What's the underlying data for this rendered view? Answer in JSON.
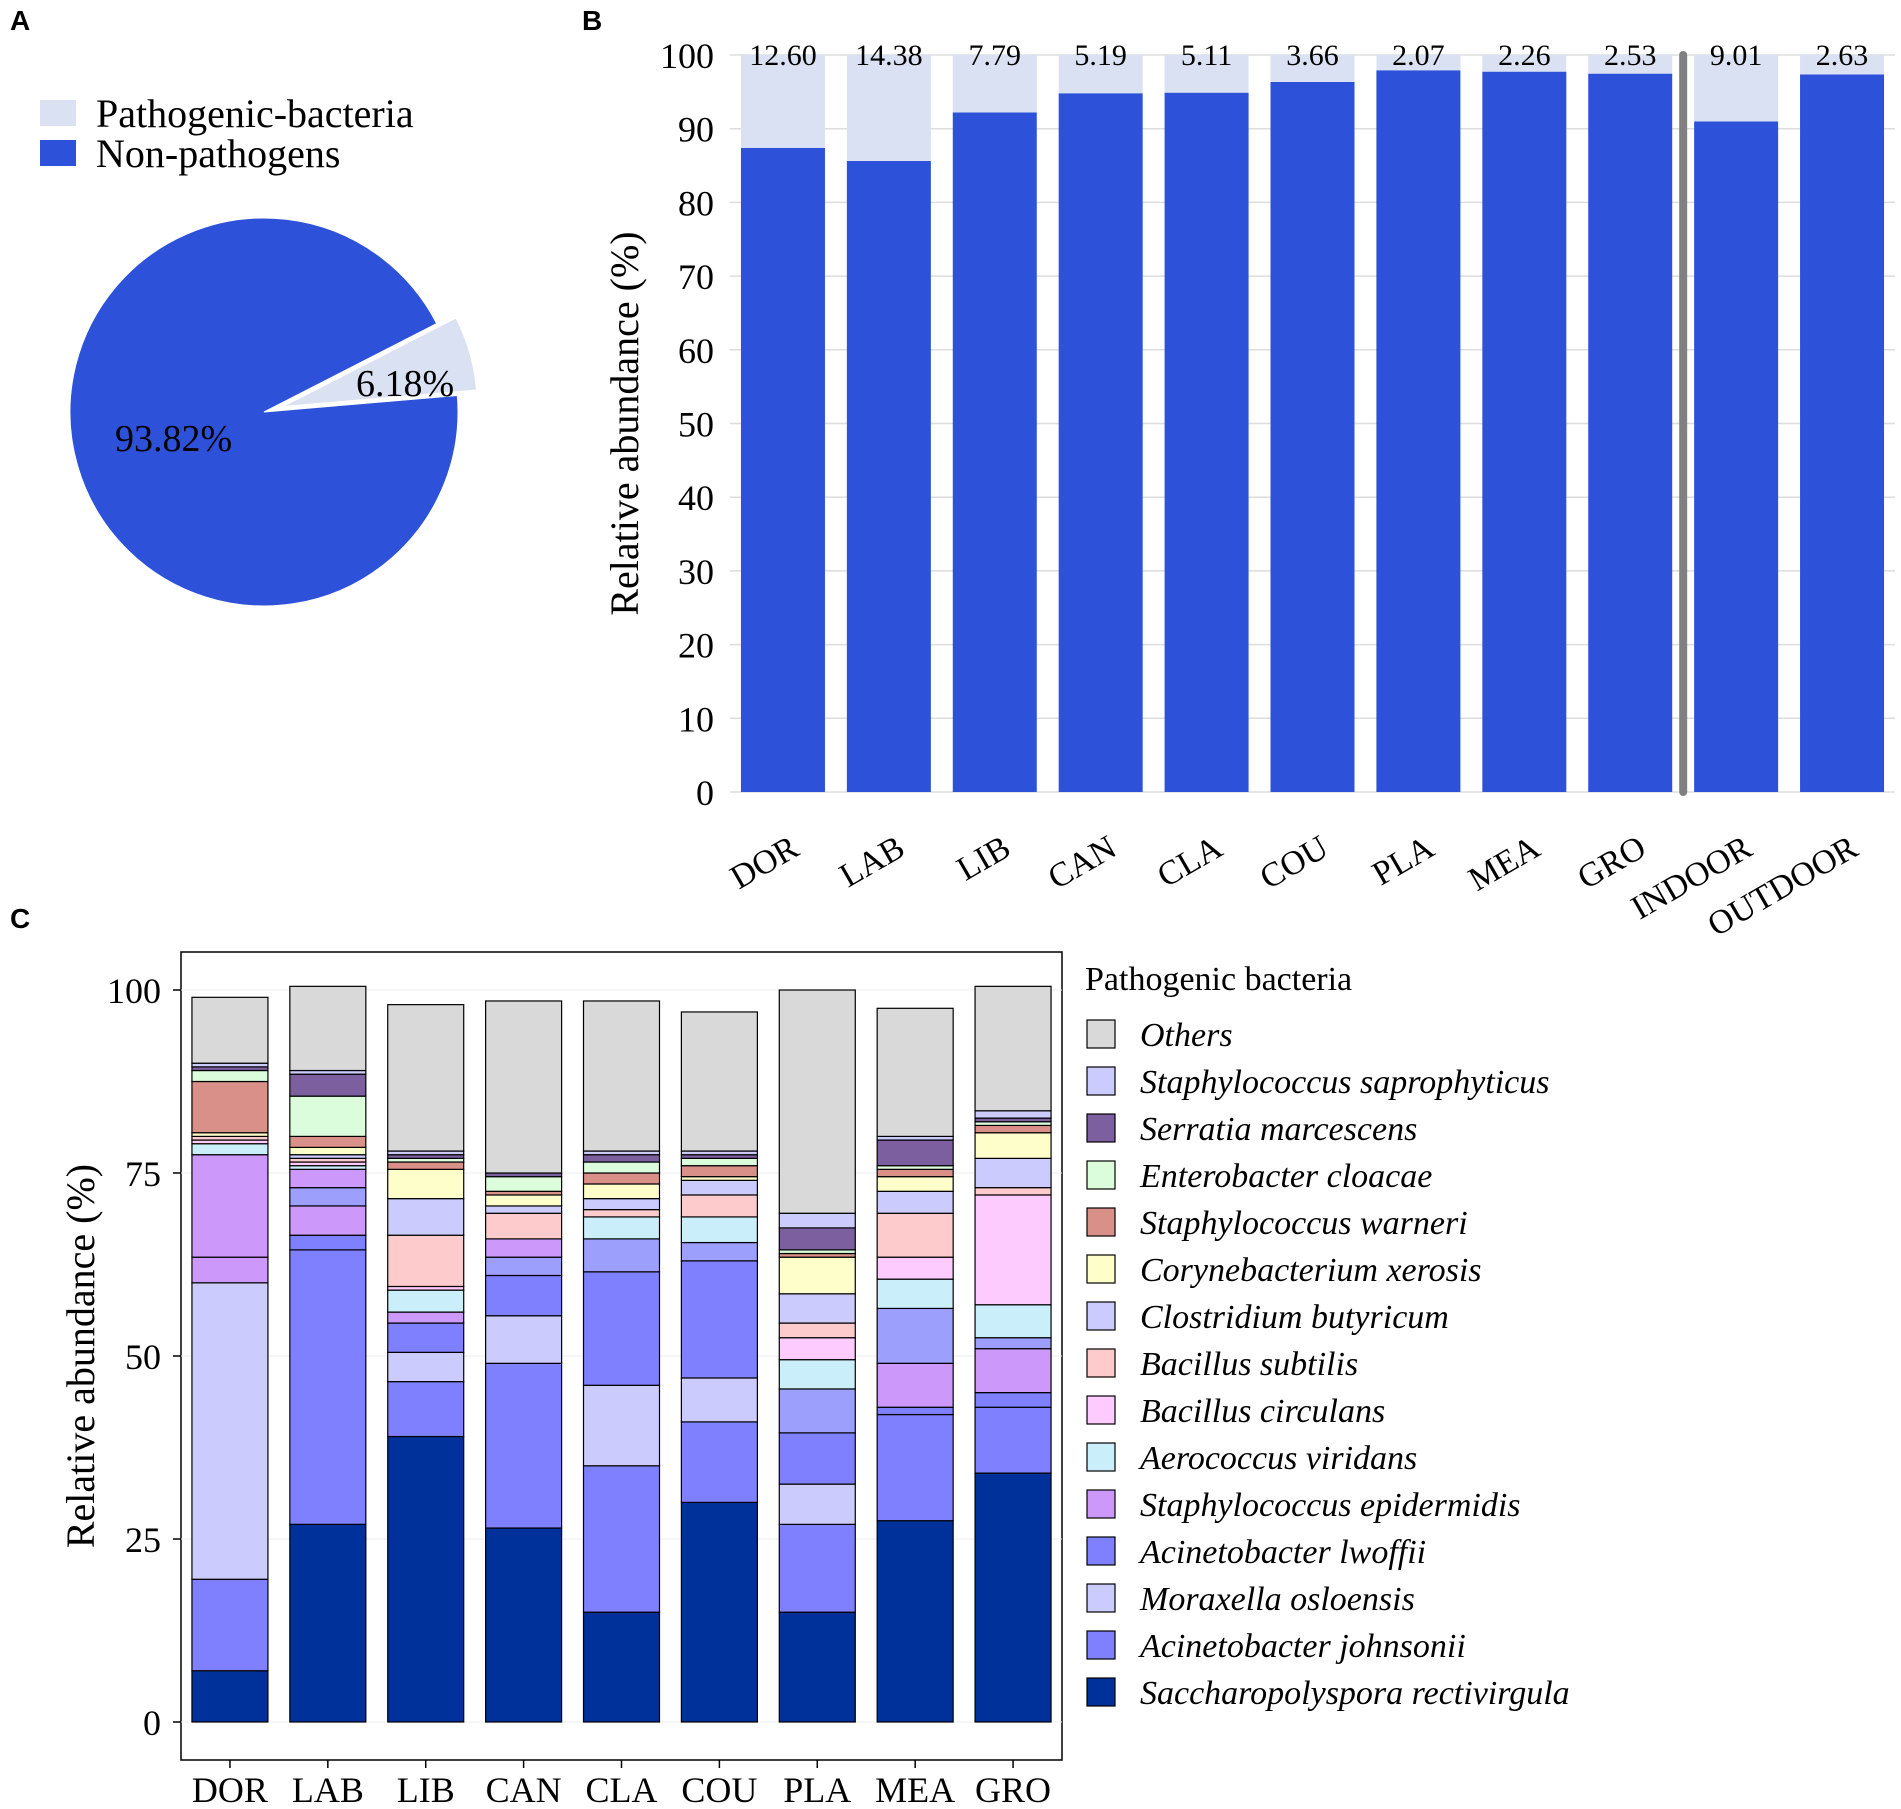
{
  "panels": {
    "a": "A",
    "b": "B",
    "c": "C"
  },
  "colors": {
    "pathogenic": "#dae1f3",
    "nonpathogen": "#2d52d9",
    "divider": "#808080",
    "gridline": "#dddddd"
  },
  "chart_data": [
    {
      "id": "A",
      "type": "pie",
      "legend": [
        {
          "label": "Pathogenic-bacteria",
          "color": "#dae1f3"
        },
        {
          "label": "Non-pathogens",
          "color": "#2d52d9"
        }
      ],
      "slices": [
        {
          "name": "Pathogenic-bacteria",
          "value": 6.18,
          "label": "6.18%",
          "color": "#dae1f3",
          "exploded": true
        },
        {
          "name": "Non-pathogens",
          "value": 93.82,
          "label": "93.82%",
          "color": "#2d52d9",
          "exploded": false
        }
      ]
    },
    {
      "id": "B",
      "type": "bar",
      "stacked": true,
      "ylabel": "Relative abundance (%)",
      "ylim": [
        0,
        100
      ],
      "yticks": [
        "0",
        "10",
        "20",
        "30",
        "40",
        "50",
        "60",
        "70",
        "80",
        "90",
        "100"
      ],
      "categories": [
        "DOR",
        "LAB",
        "LIB",
        "CAN",
        "CLA",
        "COU",
        "PLA",
        "MEA",
        "GRO",
        "INDOOR",
        "OUTDOOR"
      ],
      "series": [
        {
          "name": "Non-pathogens",
          "color": "#2d52d9",
          "values": [
            87.4,
            85.62,
            92.21,
            94.81,
            94.89,
            96.34,
            97.93,
            97.74,
            97.47,
            90.99,
            97.37
          ]
        },
        {
          "name": "Pathogenic-bacteria",
          "color": "#dae1f3",
          "values": [
            12.6,
            14.38,
            7.79,
            5.19,
            5.11,
            3.66,
            2.07,
            2.26,
            2.53,
            9.01,
            2.63
          ]
        }
      ],
      "data_labels": [
        "12.60",
        "14.38",
        "7.79",
        "5.19",
        "5.11",
        "3.66",
        "2.07",
        "2.26",
        "2.53",
        "9.01",
        "2.63"
      ],
      "divider_after": "GRO"
    },
    {
      "id": "C",
      "type": "bar",
      "stacked": true,
      "ylabel": "Relative abundance (%)",
      "ylim": [
        0,
        100
      ],
      "yticks": [
        "0",
        "25",
        "50",
        "75",
        "100"
      ],
      "legend_title": "Pathogenic bacteria",
      "categories": [
        "DOR",
        "LAB",
        "LIB",
        "CAN",
        "CLA",
        "COU",
        "PLA",
        "MEA",
        "GRO"
      ],
      "series": [
        {
          "name": "Saccharopolyspora rectivirgula",
          "color": "#00309a",
          "values": [
            7,
            27,
            39,
            26.5,
            15,
            30,
            15,
            27.5,
            34
          ]
        },
        {
          "name": "Acinetobacter johnsonii",
          "color": "#7f80fd",
          "values": [
            12.5,
            37.5,
            7.5,
            22.5,
            20,
            11,
            12,
            14.5,
            9
          ]
        },
        {
          "name": "Moraxella osloensis",
          "color": "#cccbfd",
          "values": [
            40.5,
            0,
            4,
            6.5,
            11,
            6,
            5.5,
            0,
            0
          ]
        },
        {
          "name": "Acinetobacter lwoffii",
          "color": "#7f80fd",
          "values": [
            0,
            2,
            4,
            5.5,
            15.5,
            16,
            7,
            1,
            2
          ]
        },
        {
          "name": "Staphylococcus epidermidis",
          "color": "#cc99fb",
          "values": [
            3.5,
            4,
            1.5,
            0,
            0,
            0,
            0,
            6,
            6
          ]
        },
        {
          "name": "Acinetobacter lwoffii",
          "color": "#9c9ffb",
          "values": [
            0,
            2.5,
            0,
            2.5,
            4.5,
            2.5,
            6,
            7.5,
            1.5
          ]
        },
        {
          "name": "Staphylococcus epidermidis",
          "color": "#cc99fb",
          "values": [
            14,
            2.5,
            0,
            2.5,
            0,
            0,
            0,
            0,
            0
          ]
        },
        {
          "name": "Aerococcus viridans",
          "color": "#cbeefb",
          "values": [
            1.5,
            0.5,
            3,
            0,
            3,
            3.5,
            4,
            4,
            4.5
          ]
        },
        {
          "name": "Bacillus circulans",
          "color": "#fdcbfd",
          "values": [
            0.5,
            0.5,
            0.5,
            0,
            0,
            0,
            3,
            3,
            15
          ]
        },
        {
          "name": "Bacillus subtilis",
          "color": "#fdcbcb",
          "values": [
            0.5,
            0.5,
            7,
            3.5,
            1,
            3,
            2,
            6,
            1
          ]
        },
        {
          "name": "Clostridium butyricum",
          "color": "#cccbfd",
          "values": [
            0,
            0.5,
            5,
            1,
            1.5,
            2,
            4,
            3,
            4
          ]
        },
        {
          "name": "Corynebacterium xerosis",
          "color": "#fefecb",
          "values": [
            0.5,
            1,
            4,
            1.5,
            2,
            0.5,
            5,
            2,
            3.5
          ]
        },
        {
          "name": "Staphylococcus warneri",
          "color": "#d99089",
          "values": [
            7,
            1.5,
            1,
            0.5,
            1.5,
            1.5,
            0.5,
            1,
            1
          ]
        },
        {
          "name": "Enterobacter cloacae",
          "color": "#dcfddc",
          "values": [
            1.5,
            5.5,
            0.5,
            2,
            1.5,
            1,
            0.5,
            0.5,
            0.5
          ]
        },
        {
          "name": "Serratia marcescens",
          "color": "#7c5f9f",
          "values": [
            0.5,
            3,
            0.5,
            0.5,
            1,
            0.5,
            3,
            3.5,
            0.5
          ]
        },
        {
          "name": "Staphylococcus saprophyticus",
          "color": "#cccbfd",
          "values": [
            0.5,
            0.5,
            0.5,
            0,
            0.5,
            0.5,
            2,
            0.5,
            1
          ]
        },
        {
          "name": "Others",
          "color": "#d9d9d9",
          "values": [
            9,
            11.5,
            20,
            23.5,
            20.5,
            19,
            30.5,
            17.5,
            17
          ]
        }
      ],
      "legend": [
        {
          "label": "Others",
          "color": "#d9d9d9"
        },
        {
          "label": "Staphylococcus saprophyticus",
          "color": "#cccbfd"
        },
        {
          "label": "Serratia marcescens",
          "color": "#7c5f9f"
        },
        {
          "label": "Enterobacter cloacae",
          "color": "#dcfddc"
        },
        {
          "label": "Staphylococcus warneri",
          "color": "#d99089"
        },
        {
          "label": "Corynebacterium xerosis",
          "color": "#fefecb"
        },
        {
          "label": "Clostridium butyricum",
          "color": "#cccbfd"
        },
        {
          "label": "Bacillus subtilis",
          "color": "#fdcbcb"
        },
        {
          "label": "Bacillus circulans",
          "color": "#fdcbfd"
        },
        {
          "label": "Aerococcus viridans",
          "color": "#cbeefb"
        },
        {
          "label": "Staphylococcus epidermidis",
          "color": "#cc99fb"
        },
        {
          "label": "Acinetobacter lwoffii",
          "color": "#7f80fd"
        },
        {
          "label": "Moraxella osloensis",
          "color": "#cccbfd"
        },
        {
          "label": "Acinetobacter johnsonii",
          "color": "#7f80fd"
        },
        {
          "label": "Saccharopolyspora rectivirgula",
          "color": "#00309a"
        }
      ]
    }
  ]
}
